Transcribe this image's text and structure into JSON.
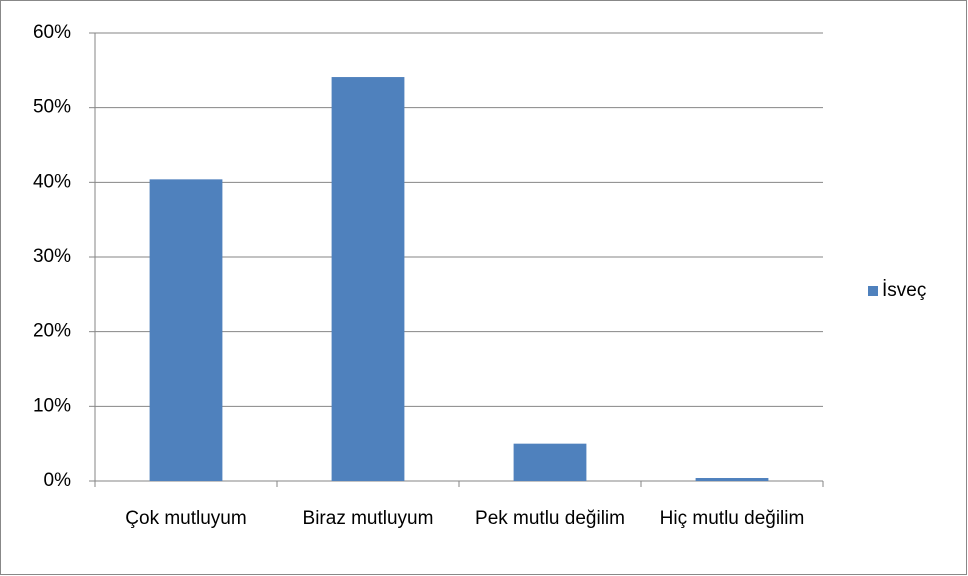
{
  "chart_data": {
    "type": "bar",
    "categories": [
      "Çok mutluyum",
      "Biraz mutluyum",
      "Pek mutlu değilim",
      "Hiç mutlu değilim"
    ],
    "series": [
      {
        "name": "İsveç",
        "color": "#4f81bd",
        "values": [
          40.4,
          54.1,
          5.0,
          0.4
        ]
      }
    ],
    "ylim": [
      0,
      60
    ],
    "yticks": [
      {
        "value": 0,
        "label": "0%"
      },
      {
        "value": 10,
        "label": "10%"
      },
      {
        "value": 20,
        "label": "20%"
      },
      {
        "value": 30,
        "label": "30%"
      },
      {
        "value": 40,
        "label": "40%"
      },
      {
        "value": 50,
        "label": "50%"
      },
      {
        "value": 60,
        "label": "60%"
      }
    ],
    "grid": true,
    "legend": "right"
  }
}
